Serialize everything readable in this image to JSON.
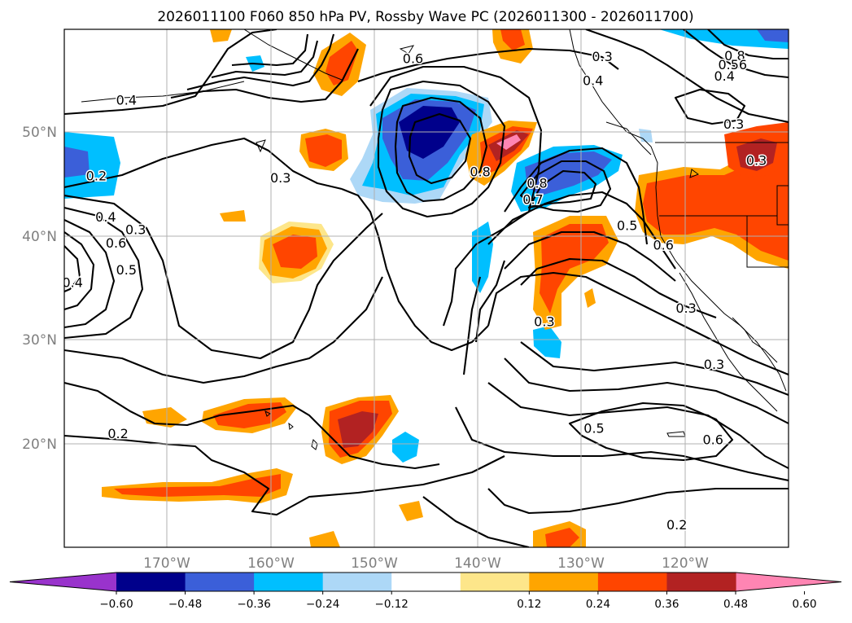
{
  "title": "2026011100 F060 850 hPa PV, Rossby Wave PC (2026011300 - 2026011700)",
  "map": {
    "lat_labels": [
      "50°N",
      "40°N",
      "30°N",
      "20°N"
    ],
    "lon_labels": [
      "170°W",
      "160°W",
      "150°W",
      "140°W",
      "130°W",
      "120°W"
    ]
  },
  "chart_data": {
    "type": "filled-contour map with line contours",
    "title": "2026011100 F060 850 hPa PV, Rossby Wave PC (2026011300 - 2026011700)",
    "variable_shaded": "Rossby Wave PC",
    "variable_contoured": "850 hPa PV",
    "lat_range": [
      10,
      60
    ],
    "lon_range": [
      -180,
      -110
    ],
    "colorbar": {
      "ticks": [
        "-0.60",
        "-0.48",
        "-0.36",
        "-0.24",
        "-0.12",
        "0.12",
        "0.24",
        "0.36",
        "0.48",
        "0.60"
      ],
      "colors": [
        "#9933cc",
        "#00008b",
        "#3b5fd9",
        "#00bfff",
        "#add8f7",
        "#ffffff",
        "#fde68a",
        "#ffa500",
        "#ff4500",
        "#b22222",
        "#ff85b3"
      ],
      "extend": "both"
    },
    "contour_labels": [
      {
        "text": "0.6",
        "lat": 57.2,
        "lon": -146.3
      },
      {
        "text": "0.3",
        "lat": 57.4,
        "lon": -128.0
      },
      {
        "text": "0.4",
        "lat": 55.1,
        "lon": -128.9
      },
      {
        "text": "0.4",
        "lat": 53.2,
        "lon": -174.0
      },
      {
        "text": "0.2",
        "lat": 45.9,
        "lon": -176.9
      },
      {
        "text": "0.3",
        "lat": 45.7,
        "lon": -159.1
      },
      {
        "text": "0.8",
        "lat": 46.3,
        "lon": -139.8
      },
      {
        "text": "0.8",
        "lat": 45.2,
        "lon": -134.3
      },
      {
        "text": "0.7",
        "lat": 43.6,
        "lon": -134.7
      },
      {
        "text": "0.4",
        "lat": 41.9,
        "lon": -176.0
      },
      {
        "text": "0.3",
        "lat": 40.7,
        "lon": -173.1
      },
      {
        "text": "0.6",
        "lat": 39.4,
        "lon": -175.0
      },
      {
        "text": "0.5",
        "lat": 36.8,
        "lon": -174.0
      },
      {
        "text": "0.4",
        "lat": 35.6,
        "lon": -179.2
      },
      {
        "text": "0.5",
        "lat": 41.1,
        "lon": -125.6
      },
      {
        "text": "0.6",
        "lat": 39.2,
        "lon": -122.1
      },
      {
        "text": "0.3",
        "lat": 31.8,
        "lon": -133.6
      },
      {
        "text": "0.3",
        "lat": 33.1,
        "lon": -119.9
      },
      {
        "text": "0.3",
        "lat": 27.7,
        "lon": -117.2
      },
      {
        "text": "0.3",
        "lat": 50.9,
        "lon": -115.3
      },
      {
        "text": "0.3",
        "lat": 47.4,
        "lon": -113.1
      },
      {
        "text": "0.2",
        "lat": 21.0,
        "lon": -174.8
      },
      {
        "text": "0.5",
        "lat": 21.5,
        "lon": -128.8
      },
      {
        "text": "0.6",
        "lat": 20.4,
        "lon": -117.3
      },
      {
        "text": "0.2",
        "lat": 12.2,
        "lon": -120.8
      },
      {
        "text": "0.8",
        "lat": 57.5,
        "lon": -115.2
      },
      {
        "text": "0.4",
        "lat": 55.5,
        "lon": -116.2
      },
      {
        "text": "0.56",
        "lat": 56.6,
        "lon": -115.4
      }
    ]
  }
}
